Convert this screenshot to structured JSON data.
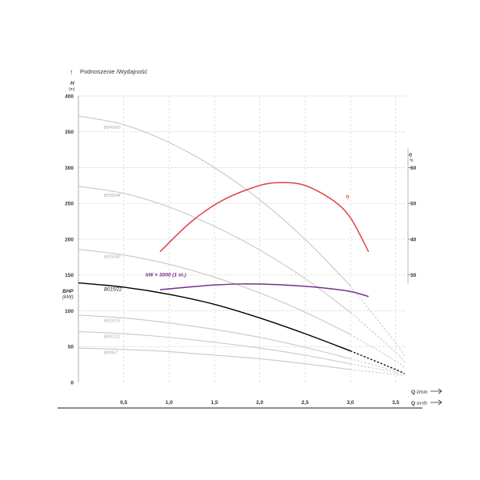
{
  "title": "Podnoszenie /Wydajność",
  "y_label": "H",
  "y_unit": "(m)",
  "eff_label": "η",
  "eff_unit": "%",
  "bhp_label": "BHP",
  "bhp_unit": "(kW)",
  "x_label_1": "Q",
  "x_unit_1": "l/min",
  "x_label_2": "Q",
  "x_unit_2": "m³/h",
  "colors": {
    "curve": "#c8c8c8",
    "highlight": "#000000",
    "efficiency": "#e0444a",
    "power": "#7a2f8f",
    "grid": "#d8d8d8"
  },
  "chart_data": {
    "type": "line",
    "y_ticks": [
      0,
      50,
      100,
      150,
      200,
      250,
      300,
      350,
      400
    ],
    "ylim": [
      0,
      400
    ],
    "eff_ticks": [
      30,
      40,
      50,
      60
    ],
    "xlim": [
      0,
      3.6
    ],
    "x_ticks": [
      0.5,
      1.0,
      1.5,
      2.0,
      2.5,
      3.0,
      3.5
    ],
    "x_tick_labels": [
      "0,5",
      "1,0",
      "1,5",
      "2,0",
      "2,5",
      "3,0",
      "3,5"
    ],
    "series": [
      {
        "name": "B040/60",
        "points": [
          [
            0,
            372
          ],
          [
            0.5,
            360
          ],
          [
            1.0,
            335
          ],
          [
            1.5,
            300
          ],
          [
            2.0,
            255
          ],
          [
            2.5,
            200
          ],
          [
            3.0,
            135
          ],
          [
            3.5,
            55
          ],
          [
            3.6,
            35
          ]
        ]
      },
      {
        "name": "B030/44",
        "points": [
          [
            0,
            274
          ],
          [
            0.5,
            264
          ],
          [
            1.0,
            245
          ],
          [
            1.5,
            218
          ],
          [
            2.0,
            185
          ],
          [
            2.5,
            145
          ],
          [
            3.0,
            98
          ],
          [
            3.5,
            42
          ],
          [
            3.6,
            28
          ]
        ]
      },
      {
        "name": "B020/30",
        "points": [
          [
            0,
            186
          ],
          [
            0.5,
            178
          ],
          [
            1.0,
            165
          ],
          [
            1.5,
            147
          ],
          [
            2.0,
            125
          ],
          [
            2.5,
            98
          ],
          [
            3.0,
            67
          ],
          [
            3.5,
            30
          ],
          [
            3.6,
            20
          ]
        ]
      },
      {
        "name": "B015/22",
        "points": [
          [
            0,
            139
          ],
          [
            0.5,
            133
          ],
          [
            1.0,
            123
          ],
          [
            1.5,
            109
          ],
          [
            2.0,
            90
          ],
          [
            2.5,
            68
          ],
          [
            3.0,
            44
          ],
          [
            3.5,
            18
          ],
          [
            3.6,
            12
          ]
        ]
      },
      {
        "name": "B010/15",
        "points": [
          [
            0,
            94
          ],
          [
            0.5,
            90
          ],
          [
            1.0,
            83
          ],
          [
            1.5,
            74
          ],
          [
            2.0,
            63
          ],
          [
            2.5,
            49
          ],
          [
            3.0,
            33
          ],
          [
            3.5,
            16
          ],
          [
            3.6,
            12
          ]
        ]
      },
      {
        "name": "B007/11",
        "points": [
          [
            0,
            71
          ],
          [
            0.5,
            68
          ],
          [
            1.0,
            63
          ],
          [
            1.5,
            56
          ],
          [
            2.0,
            48
          ],
          [
            2.5,
            38
          ],
          [
            3.0,
            26
          ],
          [
            3.5,
            14
          ],
          [
            3.6,
            11
          ]
        ]
      },
      {
        "name": "B005/7",
        "points": [
          [
            0,
            48
          ],
          [
            0.5,
            46
          ],
          [
            1.0,
            43
          ],
          [
            1.5,
            38
          ],
          [
            2.0,
            33
          ],
          [
            2.5,
            26
          ],
          [
            3.0,
            18
          ],
          [
            3.5,
            11
          ],
          [
            3.6,
            9
          ]
        ]
      }
    ],
    "highlight_series": "B015/22",
    "efficiency": {
      "name": "η",
      "points": [
        [
          0.9,
          36.5
        ],
        [
          1.25,
          45
        ],
        [
          1.6,
          51
        ],
        [
          2.0,
          55
        ],
        [
          2.25,
          55.8
        ],
        [
          2.5,
          55
        ],
        [
          2.8,
          51
        ],
        [
          3.0,
          46
        ],
        [
          3.2,
          36.5
        ]
      ]
    },
    "power": {
      "name": "kW × 3000 (1 st.)",
      "points": [
        [
          0.9,
          129.5
        ],
        [
          1.2,
          133
        ],
        [
          1.5,
          136
        ],
        [
          1.8,
          137.5
        ],
        [
          2.1,
          137
        ],
        [
          2.4,
          135
        ],
        [
          2.7,
          132
        ],
        [
          3.0,
          127
        ],
        [
          3.2,
          120
        ]
      ]
    }
  }
}
